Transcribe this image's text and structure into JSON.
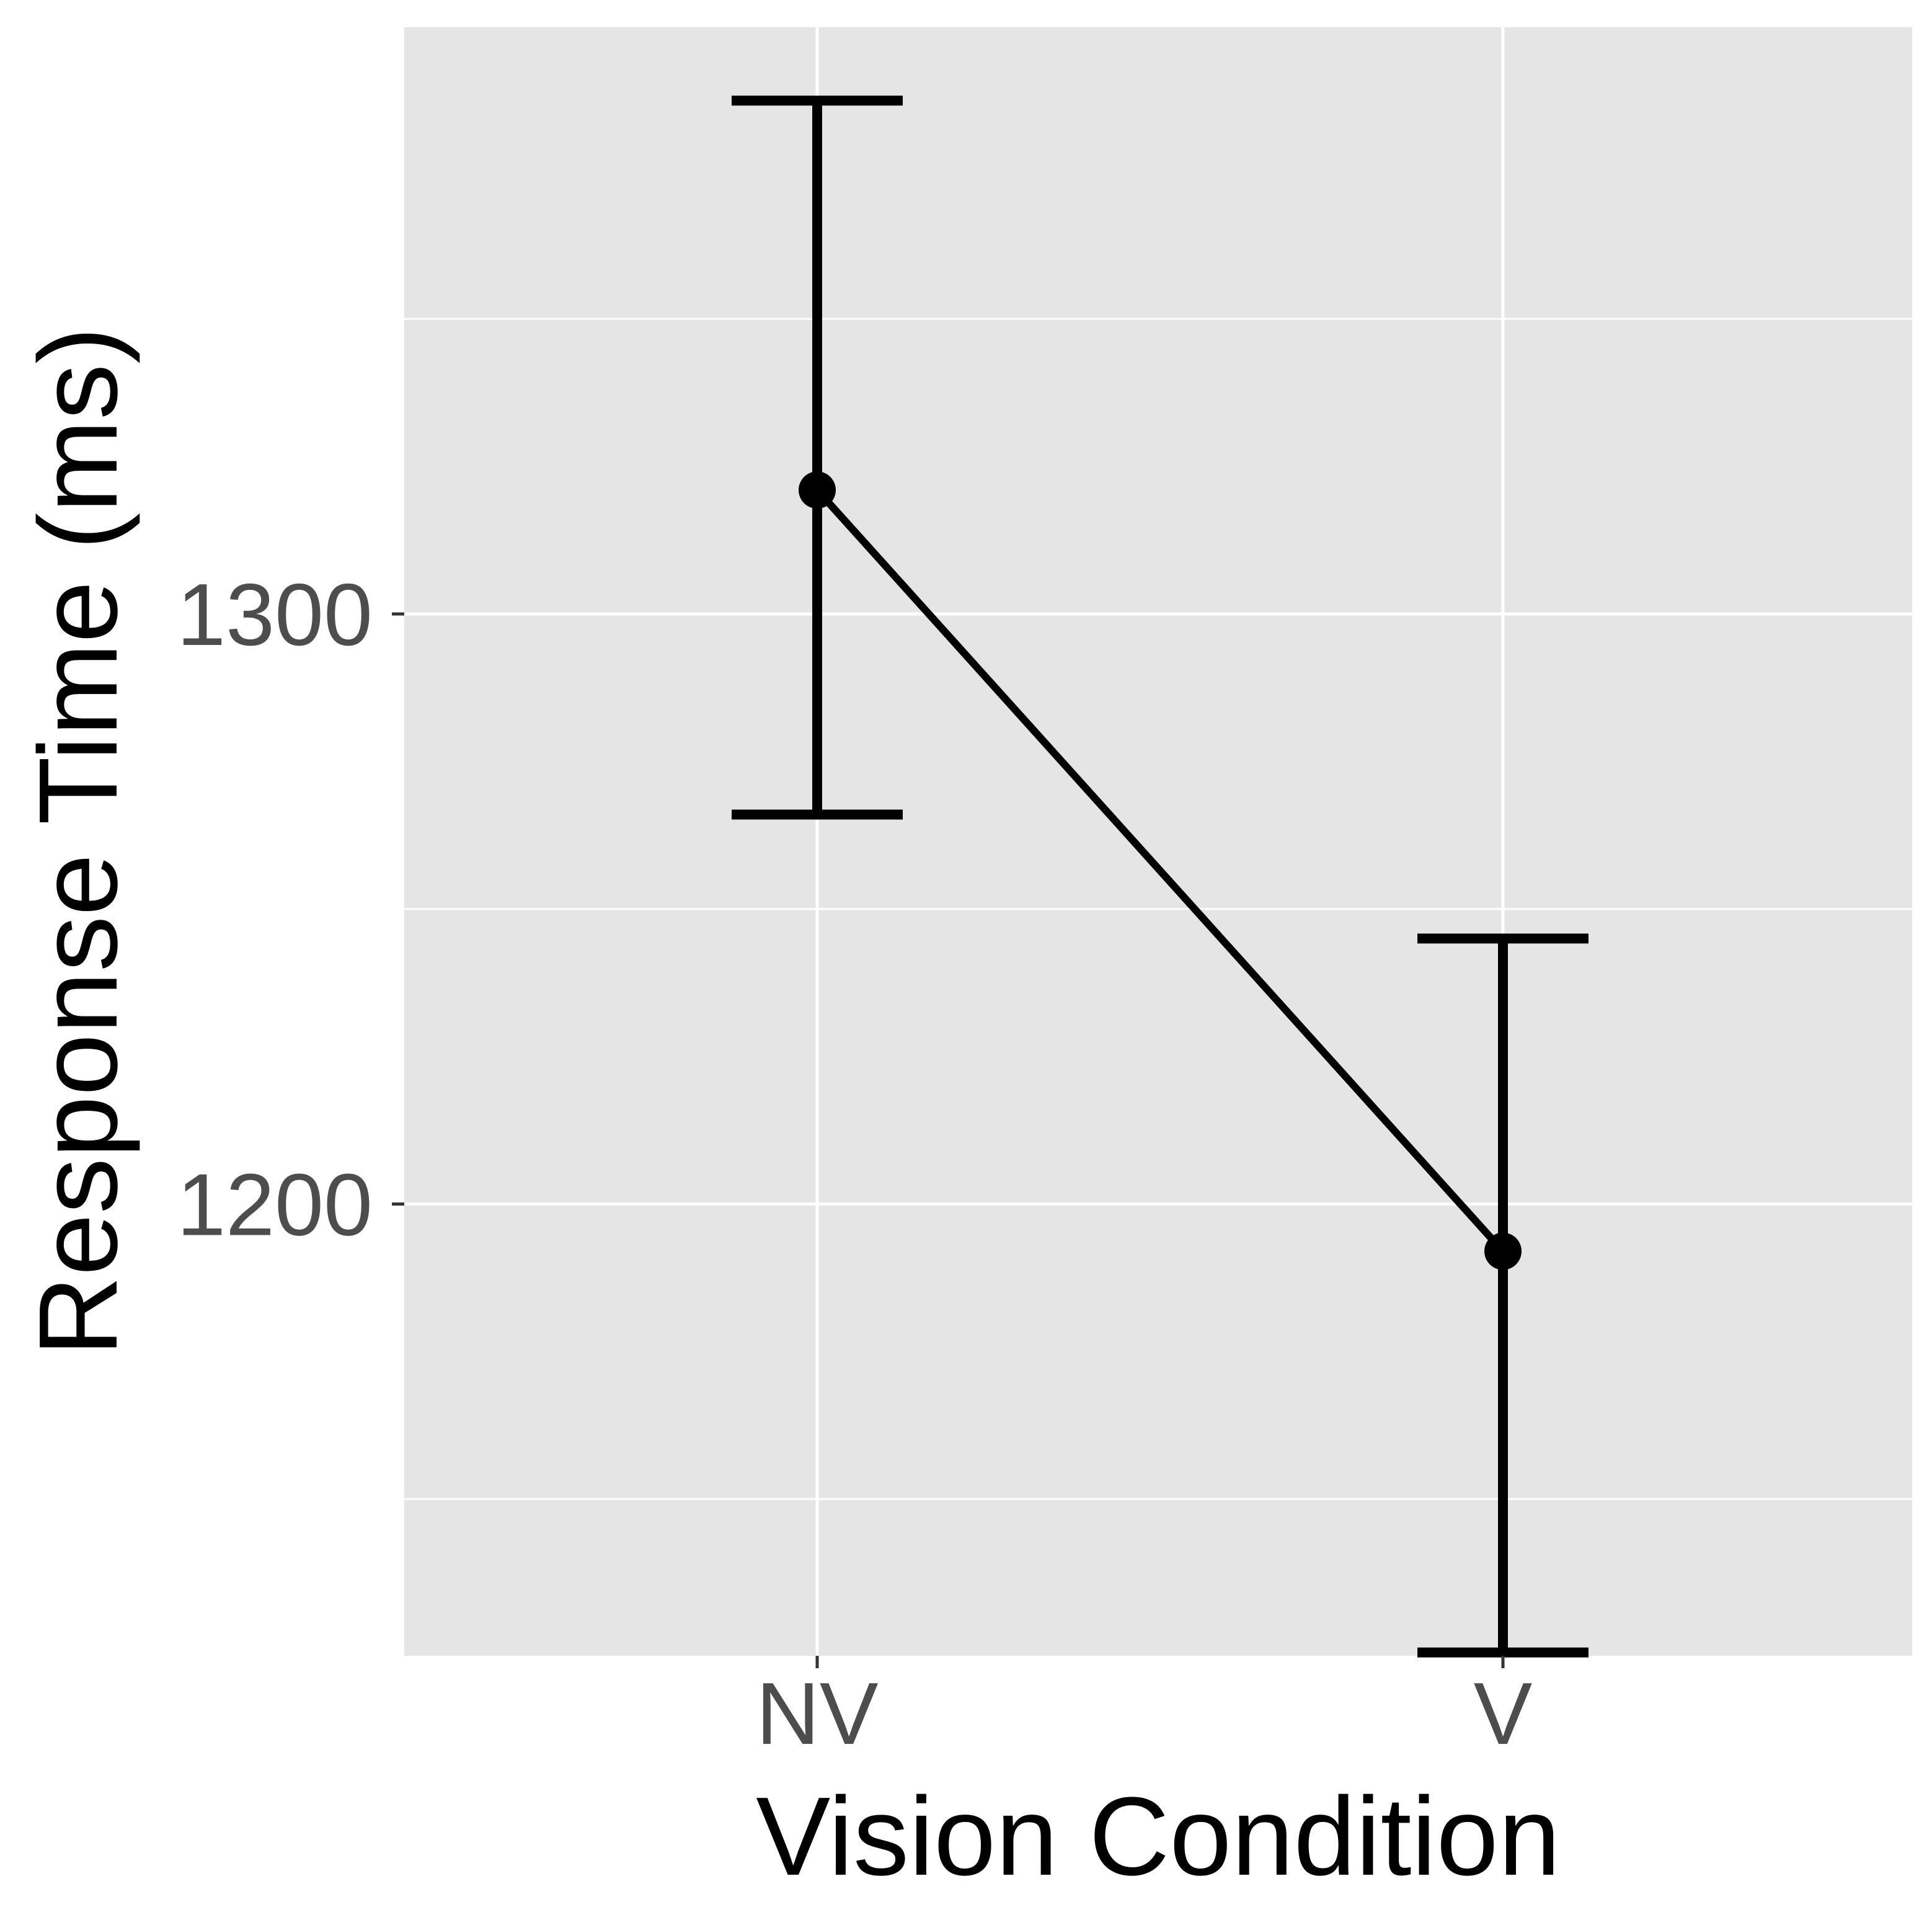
{
  "chart_data": {
    "type": "line",
    "title": "",
    "xlabel": "Vision Condition",
    "ylabel": "Response Time (ms)",
    "categories": [
      "NV",
      "V"
    ],
    "series": [
      {
        "values": [
          1321,
          1192
        ],
        "error_lower": [
          1266,
          1124
        ],
        "error_upper": [
          1387,
          1245
        ]
      }
    ],
    "y_ticks": [
      1200,
      1300
    ],
    "y_tick_labels": [
      "1200",
      "1300"
    ],
    "ylim": [
      1122.9,
      1398.7
    ],
    "grid": true,
    "legend": "none",
    "colors": {
      "panel_background": "#e5e5e5",
      "grid": "#ffffff",
      "series": "#000000",
      "tick_label": "#4d4d4d",
      "axis_title": "#000000",
      "tick_mark": "#333333"
    }
  }
}
